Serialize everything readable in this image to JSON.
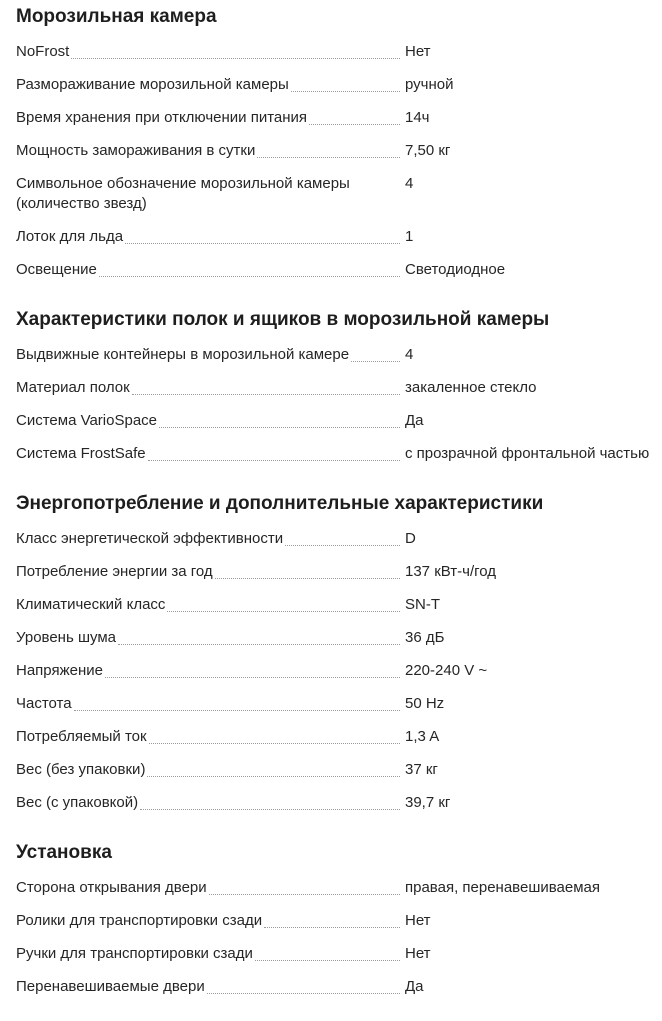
{
  "colors": {
    "text": "#262626",
    "heading": "#1e1e1e",
    "leader_dots": "#9b9b9b",
    "background": "#ffffff"
  },
  "sections": [
    {
      "title": "Морозильная камера",
      "rows": [
        {
          "label": "NoFrost",
          "value": "Нет"
        },
        {
          "label": "Размораживание морозильной камеры",
          "value": "ручной"
        },
        {
          "label": "Время хранения при отключении питания",
          "value": "14ч"
        },
        {
          "label": "Мощность замораживания в сутки",
          "value": "7,50 кг"
        },
        {
          "label": "Символьное обозначение морозильной камеры (количество звезд)",
          "value": "4",
          "dots": false
        },
        {
          "label": "Лоток для льда",
          "value": "1"
        },
        {
          "label": "Освещение",
          "value": "Светодиодное"
        }
      ]
    },
    {
      "title": "Характеристики полок и ящиков в морозильной камеры",
      "rows": [
        {
          "label": "Выдвижные контейнеры в морозильной камере",
          "value": "4"
        },
        {
          "label": "Материал полок",
          "value": "закаленное стекло"
        },
        {
          "label": "Система VarioSpace",
          "value": "Да"
        },
        {
          "label": "Система FrostSafe",
          "value": "с прозрачной фронтальной частью"
        }
      ]
    },
    {
      "title": "Энергопотребление и дополнительные характеристики",
      "rows": [
        {
          "label": "Класс энергетической эффективности",
          "value": "D"
        },
        {
          "label": "Потребление энергии за год",
          "value": "137 кВт-ч/год"
        },
        {
          "label": "Климатический класс",
          "value": "SN-T"
        },
        {
          "label": "Уровень шума",
          "value": "36 дБ"
        },
        {
          "label": "Напряжение",
          "value": "220-240 V ~"
        },
        {
          "label": "Частота",
          "value": "50 Hz"
        },
        {
          "label": "Потребляемый ток",
          "value": "1,3 A"
        },
        {
          "label": "Вес (без упаковки)",
          "value": "37 кг"
        },
        {
          "label": "Вес (с упаковкой)",
          "value": "39,7 кг"
        }
      ]
    },
    {
      "title": "Установка",
      "rows": [
        {
          "label": "Сторона открывания двери",
          "value": "правая, перенавешиваемая"
        },
        {
          "label": "Ролики для транспортировки сзади",
          "value": "Нет"
        },
        {
          "label": "Ручки для транспортировки сзади",
          "value": "Нет"
        },
        {
          "label": "Перенавешиваемые двери",
          "value": "Да"
        }
      ]
    }
  ]
}
